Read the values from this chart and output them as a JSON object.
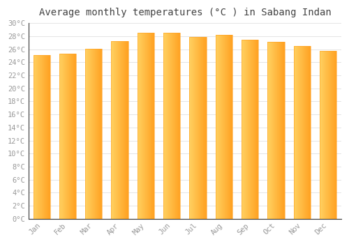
{
  "title": "Average monthly temperatures (°C ) in Sabang Indan",
  "months": [
    "Jan",
    "Feb",
    "Mar",
    "Apr",
    "May",
    "Jun",
    "Jul",
    "Aug",
    "Sep",
    "Oct",
    "Nov",
    "Dec"
  ],
  "values": [
    25.1,
    25.3,
    26.1,
    27.2,
    28.5,
    28.5,
    27.9,
    28.2,
    27.5,
    27.1,
    26.5,
    25.7
  ],
  "bar_color_left": "#FFD060",
  "bar_color_right": "#FFA020",
  "ylim": [
    0,
    30
  ],
  "ytick_step": 2,
  "background_color": "#ffffff",
  "grid_color": "#e0e0e0",
  "title_fontsize": 10,
  "tick_fontsize": 7.5,
  "spine_color": "#aaaaaa",
  "tick_label_color": "#999999"
}
